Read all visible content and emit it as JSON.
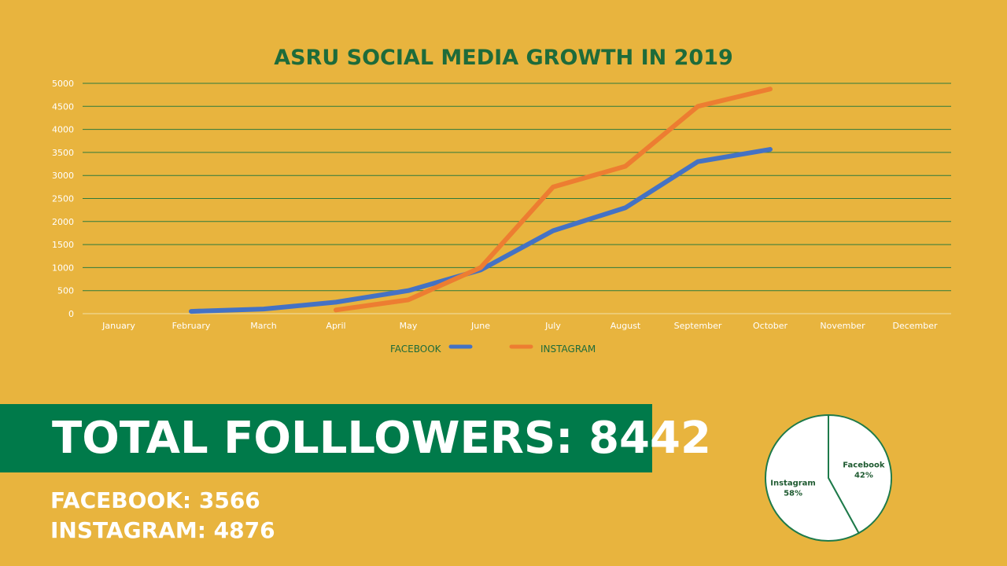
{
  "colors": {
    "background": "#E8B43E",
    "green": "#007A4A",
    "title_green": "#1E6B3A",
    "facebook": "#4472C4",
    "instagram": "#ED7D31",
    "white": "#FFFFFF"
  },
  "summary": {
    "total_followers": "TOTAL FOLLLOWERS: 8442",
    "facebook": "FACEBOOK: 3566",
    "instagram": "INSTAGRAM: 4876"
  },
  "chart_data": [
    {
      "type": "line",
      "title": "ASRU SOCIAL MEDIA GROWTH IN 2019",
      "categories": [
        "January",
        "February",
        "March",
        "April",
        "May",
        "June",
        "July",
        "August",
        "September",
        "October",
        "November",
        "December"
      ],
      "y_ticks": [
        "0",
        "500",
        "1000",
        "1500",
        "2000",
        "2500",
        "3000",
        "3500",
        "4000",
        "4500",
        "5000"
      ],
      "ylim": [
        0,
        5000
      ],
      "grid": true,
      "legend": "bottom",
      "series": [
        {
          "name": "FACEBOOK",
          "color": "#4472C4",
          "values": [
            null,
            50,
            100,
            250,
            500,
            950,
            1800,
            2300,
            3300,
            3566,
            null,
            null
          ]
        },
        {
          "name": "INSTAGRAM",
          "color": "#ED7D31",
          "values": [
            null,
            null,
            null,
            80,
            300,
            1000,
            2750,
            3200,
            4500,
            4876,
            null,
            null
          ]
        }
      ]
    },
    {
      "type": "pie",
      "slices": [
        {
          "name": "Facebook",
          "value": 42,
          "label": "42%"
        },
        {
          "name": "Instagram",
          "value": 58,
          "label": "58%"
        }
      ]
    }
  ]
}
